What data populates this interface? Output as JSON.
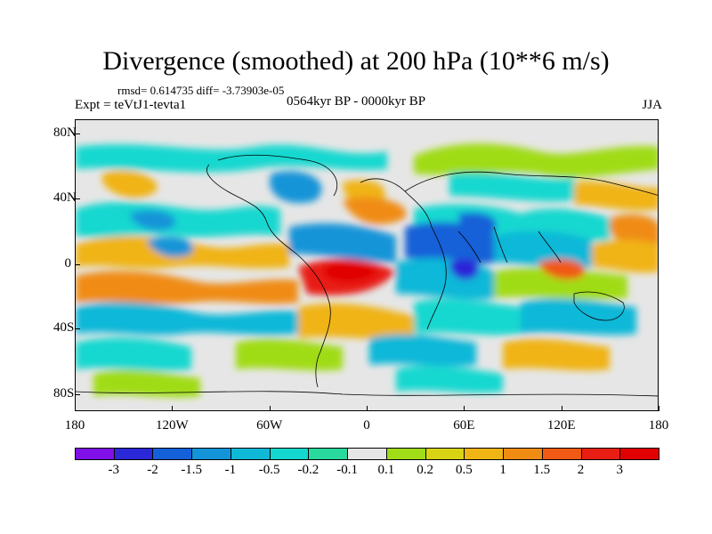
{
  "title": "Divergence (smoothed) at 200 hPa (10**6 m/s)",
  "stats": "rmsd= 0.614735  diff= -3.73903e-05",
  "experiment": "Expt = teVtJ1-tevta1",
  "period": "0564kyr BP - 0000kyr BP",
  "season": "JJA",
  "lat_labels": [
    "80N",
    "40N",
    "0",
    "40S",
    "80S"
  ],
  "lon_labels": [
    "180",
    "120W",
    "60W",
    "0",
    "60E",
    "120E",
    "180"
  ],
  "colorbar": {
    "labels": [
      "-3",
      "-2",
      "-1.5",
      "-1",
      "-0.5",
      "-0.2",
      "-0.1",
      "0.1",
      "0.2",
      "0.5",
      "1",
      "1.5",
      "2",
      "3"
    ],
    "colors": [
      "#7f10e8",
      "#2b28d8",
      "#1460d8",
      "#1494d8",
      "#10b8d8",
      "#14d8d0",
      "#28d89c",
      "#e6e6e6",
      "#a0dc18",
      "#d8d414",
      "#f0b414",
      "#f08c14",
      "#f05a14",
      "#e81e14",
      "#e00000"
    ]
  }
}
